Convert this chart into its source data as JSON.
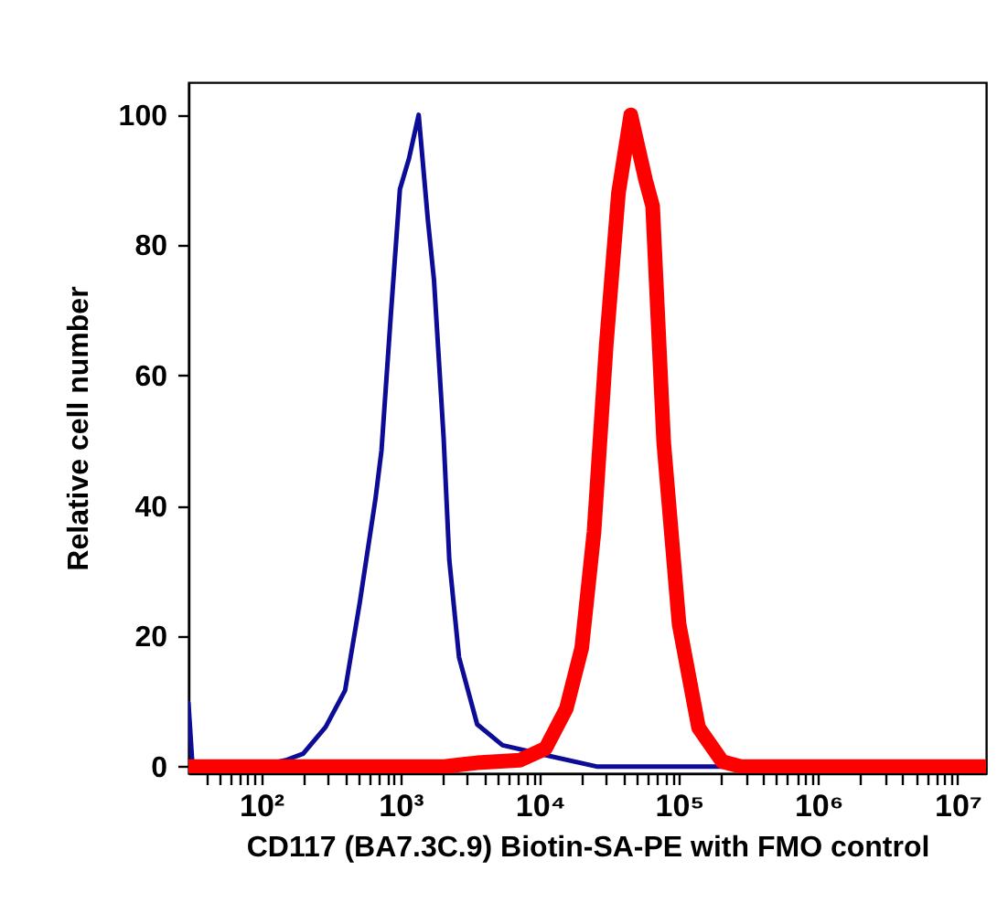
{
  "chart_data": {
    "type": "line",
    "xlabel": "CD117 (BA7.3C.9) Biotin-SA-PE with FMO control",
    "ylabel": "Relative cell number",
    "log": "x",
    "grid": false,
    "marker": "none",
    "line_style": "solid",
    "xlim": [
      30,
      16000000
    ],
    "ylim": [
      -1,
      105
    ],
    "xticks": [
      {
        "value": 40,
        "label": null
      },
      {
        "value": 50,
        "label": null
      },
      {
        "value": 60,
        "label": null
      },
      {
        "value": 70,
        "label": null
      },
      {
        "value": 80,
        "label": null
      },
      {
        "value": 90,
        "label": null
      },
      {
        "value": 100,
        "label": "10²"
      },
      {
        "value": 200,
        "label": null
      },
      {
        "value": 300,
        "label": null
      },
      {
        "value": 400,
        "label": null
      },
      {
        "value": 500,
        "label": null
      },
      {
        "value": 600,
        "label": null
      },
      {
        "value": 700,
        "label": null
      },
      {
        "value": 800,
        "label": null
      },
      {
        "value": 900,
        "label": null
      },
      {
        "value": 1000,
        "label": "10³"
      },
      {
        "value": 2000,
        "label": null
      },
      {
        "value": 3000,
        "label": null
      },
      {
        "value": 4000,
        "label": null
      },
      {
        "value": 5000,
        "label": null
      },
      {
        "value": 6000,
        "label": null
      },
      {
        "value": 7000,
        "label": null
      },
      {
        "value": 8000,
        "label": null
      },
      {
        "value": 9000,
        "label": null
      },
      {
        "value": 10000,
        "label": "10⁴"
      },
      {
        "value": 20000,
        "label": null
      },
      {
        "value": 30000,
        "label": null
      },
      {
        "value": 40000,
        "label": null
      },
      {
        "value": 50000,
        "label": null
      },
      {
        "value": 60000,
        "label": null
      },
      {
        "value": 70000,
        "label": null
      },
      {
        "value": 80000,
        "label": null
      },
      {
        "value": 90000,
        "label": null
      },
      {
        "value": 100000,
        "label": "10⁵"
      },
      {
        "value": 200000,
        "label": null
      },
      {
        "value": 300000,
        "label": null
      },
      {
        "value": 400000,
        "label": null
      },
      {
        "value": 500000,
        "label": null
      },
      {
        "value": 600000,
        "label": null
      },
      {
        "value": 700000,
        "label": null
      },
      {
        "value": 800000,
        "label": null
      },
      {
        "value": 900000,
        "label": null
      },
      {
        "value": 1000000,
        "label": "10⁶"
      },
      {
        "value": 2000000,
        "label": null
      },
      {
        "value": 3000000,
        "label": null
      },
      {
        "value": 4000000,
        "label": null
      },
      {
        "value": 5000000,
        "label": null
      },
      {
        "value": 6000000,
        "label": null
      },
      {
        "value": 7000000,
        "label": null
      },
      {
        "value": 8000000,
        "label": null
      },
      {
        "value": 9000000,
        "label": null
      },
      {
        "value": 10000000,
        "label": "10⁷"
      }
    ],
    "yticks": [
      0,
      20,
      40,
      60,
      80,
      100
    ],
    "series": [
      {
        "color": "#0c0c96",
        "x": [
          30,
          32,
          36,
          91,
          150,
          200,
          290,
          400,
          510,
          660,
          730,
          850,
          990,
          1150,
          1350,
          1570,
          1740,
          2040,
          2240,
          2630,
          3550,
          5400,
          12000,
          26000,
          16000000
        ],
        "values": [
          9.8,
          0.5,
          0,
          0,
          1,
          2,
          6.1,
          11.7,
          25.2,
          41,
          48.5,
          69,
          88.6,
          93.3,
          100,
          84,
          74.6,
          50.4,
          31.7,
          16.8,
          6.5,
          3.3,
          1.6,
          0,
          0
        ]
      },
      {
        "color": "#ff0000",
        "x": [
          30,
          2000,
          3550,
          7200,
          11000,
          15500,
          20000,
          24500,
          30000,
          36700,
          45000,
          57500,
          64600,
          77600,
          100000,
          138000,
          204000,
          282000,
          16000000
        ],
        "values": [
          0,
          0,
          0.6,
          1,
          2.8,
          8.9,
          18.2,
          36,
          64.7,
          88,
          100,
          90,
          86,
          49.7,
          21.9,
          6,
          0.8,
          0,
          0
        ]
      }
    ]
  }
}
